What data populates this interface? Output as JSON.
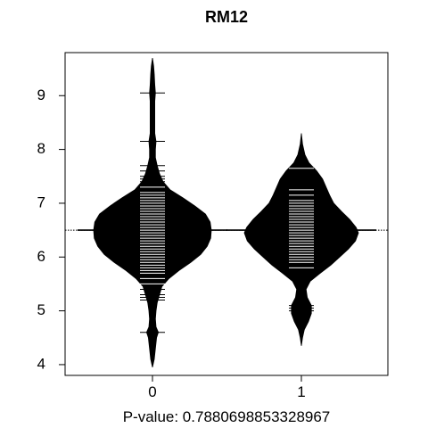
{
  "chart_data": {
    "type": "beanplot",
    "title": "RM12",
    "xlabel": "P-value: 0.7880698853328967",
    "ylabel": "",
    "categories": [
      "0",
      "1"
    ],
    "ylim": [
      3.8,
      9.8
    ],
    "yticks": [
      4,
      5,
      6,
      7,
      8,
      9
    ],
    "overall_line": 6.5,
    "grid": false,
    "legend": "none",
    "colors": {
      "bean": "#000000",
      "ticks": "#ffffff",
      "background": "#ffffff"
    },
    "series": [
      {
        "category": "0",
        "ylo": 3.95,
        "yhi": 9.7,
        "observations": [
          4.6,
          5.2,
          5.25,
          5.3,
          5.4,
          5.5,
          5.6,
          5.7,
          5.75,
          5.8,
          5.85,
          5.9,
          5.95,
          6.0,
          6.05,
          6.1,
          6.15,
          6.2,
          6.25,
          6.3,
          6.35,
          6.4,
          6.45,
          6.5,
          6.55,
          6.6,
          6.65,
          6.7,
          6.75,
          6.8,
          6.85,
          6.9,
          6.95,
          7.0,
          7.05,
          7.1,
          7.15,
          7.2,
          7.3,
          7.4,
          7.45,
          7.5,
          7.6,
          7.7,
          8.15,
          9.05
        ],
        "density": [
          [
            3.95,
            0.0
          ],
          [
            4.1,
            0.03
          ],
          [
            4.3,
            0.05
          ],
          [
            4.5,
            0.07
          ],
          [
            4.6,
            0.1
          ],
          [
            4.7,
            0.06
          ],
          [
            4.85,
            0.05
          ],
          [
            5.0,
            0.06
          ],
          [
            5.15,
            0.08
          ],
          [
            5.3,
            0.12
          ],
          [
            5.45,
            0.16
          ],
          [
            5.6,
            0.28
          ],
          [
            5.75,
            0.45
          ],
          [
            5.9,
            0.65
          ],
          [
            6.05,
            0.82
          ],
          [
            6.2,
            0.93
          ],
          [
            6.35,
            0.99
          ],
          [
            6.5,
            1.0
          ],
          [
            6.65,
            0.98
          ],
          [
            6.8,
            0.9
          ],
          [
            6.95,
            0.72
          ],
          [
            7.1,
            0.52
          ],
          [
            7.25,
            0.3
          ],
          [
            7.4,
            0.18
          ],
          [
            7.55,
            0.12
          ],
          [
            7.7,
            0.08
          ],
          [
            7.85,
            0.05
          ],
          [
            8.0,
            0.05
          ],
          [
            8.15,
            0.06
          ],
          [
            8.3,
            0.04
          ],
          [
            8.5,
            0.04
          ],
          [
            8.7,
            0.04
          ],
          [
            8.9,
            0.04
          ],
          [
            9.05,
            0.05
          ],
          [
            9.2,
            0.04
          ],
          [
            9.4,
            0.03
          ],
          [
            9.55,
            0.02
          ],
          [
            9.7,
            0.0
          ]
        ]
      },
      {
        "category": "1",
        "ylo": 4.35,
        "yhi": 8.3,
        "observations": [
          5.0,
          5.05,
          5.1,
          5.8,
          5.9,
          5.95,
          6.0,
          6.05,
          6.1,
          6.15,
          6.2,
          6.25,
          6.3,
          6.35,
          6.4,
          6.45,
          6.5,
          6.55,
          6.6,
          6.65,
          6.7,
          6.75,
          6.8,
          6.85,
          6.9,
          6.95,
          7.0,
          7.05,
          7.15,
          7.25,
          7.65
        ],
        "density": [
          [
            4.35,
            0.0
          ],
          [
            4.5,
            0.02
          ],
          [
            4.65,
            0.05
          ],
          [
            4.8,
            0.12
          ],
          [
            4.95,
            0.17
          ],
          [
            5.1,
            0.17
          ],
          [
            5.25,
            0.1
          ],
          [
            5.4,
            0.08
          ],
          [
            5.55,
            0.15
          ],
          [
            5.7,
            0.32
          ],
          [
            5.85,
            0.5
          ],
          [
            6.0,
            0.65
          ],
          [
            6.15,
            0.8
          ],
          [
            6.3,
            0.92
          ],
          [
            6.45,
            0.97
          ],
          [
            6.55,
            0.93
          ],
          [
            6.7,
            0.82
          ],
          [
            6.85,
            0.68
          ],
          [
            7.0,
            0.55
          ],
          [
            7.15,
            0.48
          ],
          [
            7.3,
            0.42
          ],
          [
            7.45,
            0.36
          ],
          [
            7.6,
            0.26
          ],
          [
            7.75,
            0.13
          ],
          [
            7.9,
            0.06
          ],
          [
            8.1,
            0.02
          ],
          [
            8.3,
            0.0
          ]
        ]
      }
    ]
  }
}
